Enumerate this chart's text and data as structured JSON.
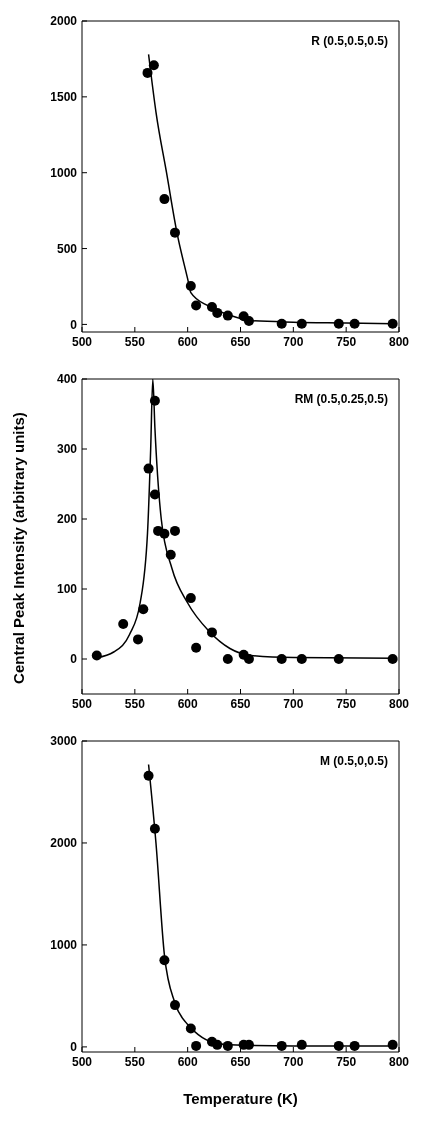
{
  "chart_data": [
    {
      "type": "scatter",
      "annotations": [
        "R (0.5,0.5,0.5)"
      ],
      "xlim": [
        500,
        800
      ],
      "xticks": [
        500,
        550,
        600,
        650,
        700,
        750,
        800
      ],
      "ylim": [
        -50,
        2000
      ],
      "yticks": [
        0,
        500,
        1000,
        1500,
        2000
      ],
      "grid": false,
      "series": [
        {
          "marker": "circle",
          "color": "#000000",
          "x": [
            562,
            568,
            578,
            588,
            603,
            608,
            623,
            628,
            638,
            653,
            658,
            689,
            708,
            743,
            758,
            794
          ],
          "values": [
            1658,
            1708,
            826,
            605,
            253,
            125,
            115,
            76,
            58,
            54,
            22,
            4,
            4,
            4,
            4,
            4
          ]
        },
        {
          "type": "line",
          "marker": "none",
          "color": "#000000",
          "x": [
            563,
            570,
            580,
            590,
            600,
            603,
            620,
            640,
            660,
            700,
            750,
            795
          ],
          "values": [
            1780,
            1400,
            1000,
            600,
            300,
            210,
            120,
            60,
            25,
            15,
            10,
            5
          ]
        }
      ]
    },
    {
      "type": "scatter",
      "ylabel": "Central Peak Intensity (arbitrary units)",
      "annotations": [
        "RM (0.5,0.25,0.5)"
      ],
      "xlim": [
        500,
        800
      ],
      "xticks": [
        500,
        550,
        600,
        650,
        700,
        750,
        800
      ],
      "ylim": [
        -50,
        400
      ],
      "yticks": [
        0,
        100,
        200,
        300,
        400
      ],
      "grid": false,
      "series": [
        {
          "marker": "circle",
          "color": "#000000",
          "x": [
            514,
            539,
            553,
            558,
            563,
            569,
            569,
            572,
            578,
            588,
            584,
            603,
            608,
            623,
            638,
            653,
            658,
            689,
            708,
            743,
            794
          ],
          "values": [
            5,
            50,
            28,
            71,
            272,
            369,
            235,
            183,
            179,
            183,
            149,
            87,
            16,
            38,
            0,
            6,
            0,
            0,
            0,
            0,
            0
          ]
        },
        {
          "type": "line",
          "marker": "none",
          "color": "#000000",
          "x": [
            514,
            530,
            545,
            555,
            562,
            565,
            567,
            569,
            575,
            585,
            600,
            620,
            640,
            660,
            700,
            795
          ],
          "values": [
            2,
            10,
            35,
            80,
            180,
            300,
            400,
            330,
            200,
            130,
            80,
            40,
            15,
            5,
            2,
            1
          ]
        }
      ]
    },
    {
      "type": "scatter",
      "xlabel": "Temperature (K)",
      "annotations": [
        "M (0.5,0,0.5)"
      ],
      "xlim": [
        500,
        800
      ],
      "xticks": [
        500,
        550,
        600,
        650,
        700,
        750,
        800
      ],
      "ylim": [
        -50,
        3000
      ],
      "yticks": [
        0,
        1000,
        2000,
        3000
      ],
      "grid": false,
      "series": [
        {
          "marker": "circle",
          "color": "#000000",
          "x": [
            563,
            569,
            578,
            588,
            603,
            608,
            623,
            628,
            638,
            653,
            658,
            689,
            708,
            743,
            758,
            794
          ],
          "values": [
            2660,
            2140,
            850,
            410,
            180,
            10,
            50,
            20,
            10,
            20,
            20,
            10,
            20,
            10,
            10,
            20
          ]
        },
        {
          "type": "line",
          "marker": "none",
          "color": "#000000",
          "x": [
            563,
            570,
            578,
            588,
            600,
            610,
            625,
            640,
            700,
            795
          ],
          "values": [
            2770,
            2000,
            900,
            430,
            220,
            120,
            40,
            20,
            10,
            10
          ]
        }
      ]
    }
  ]
}
